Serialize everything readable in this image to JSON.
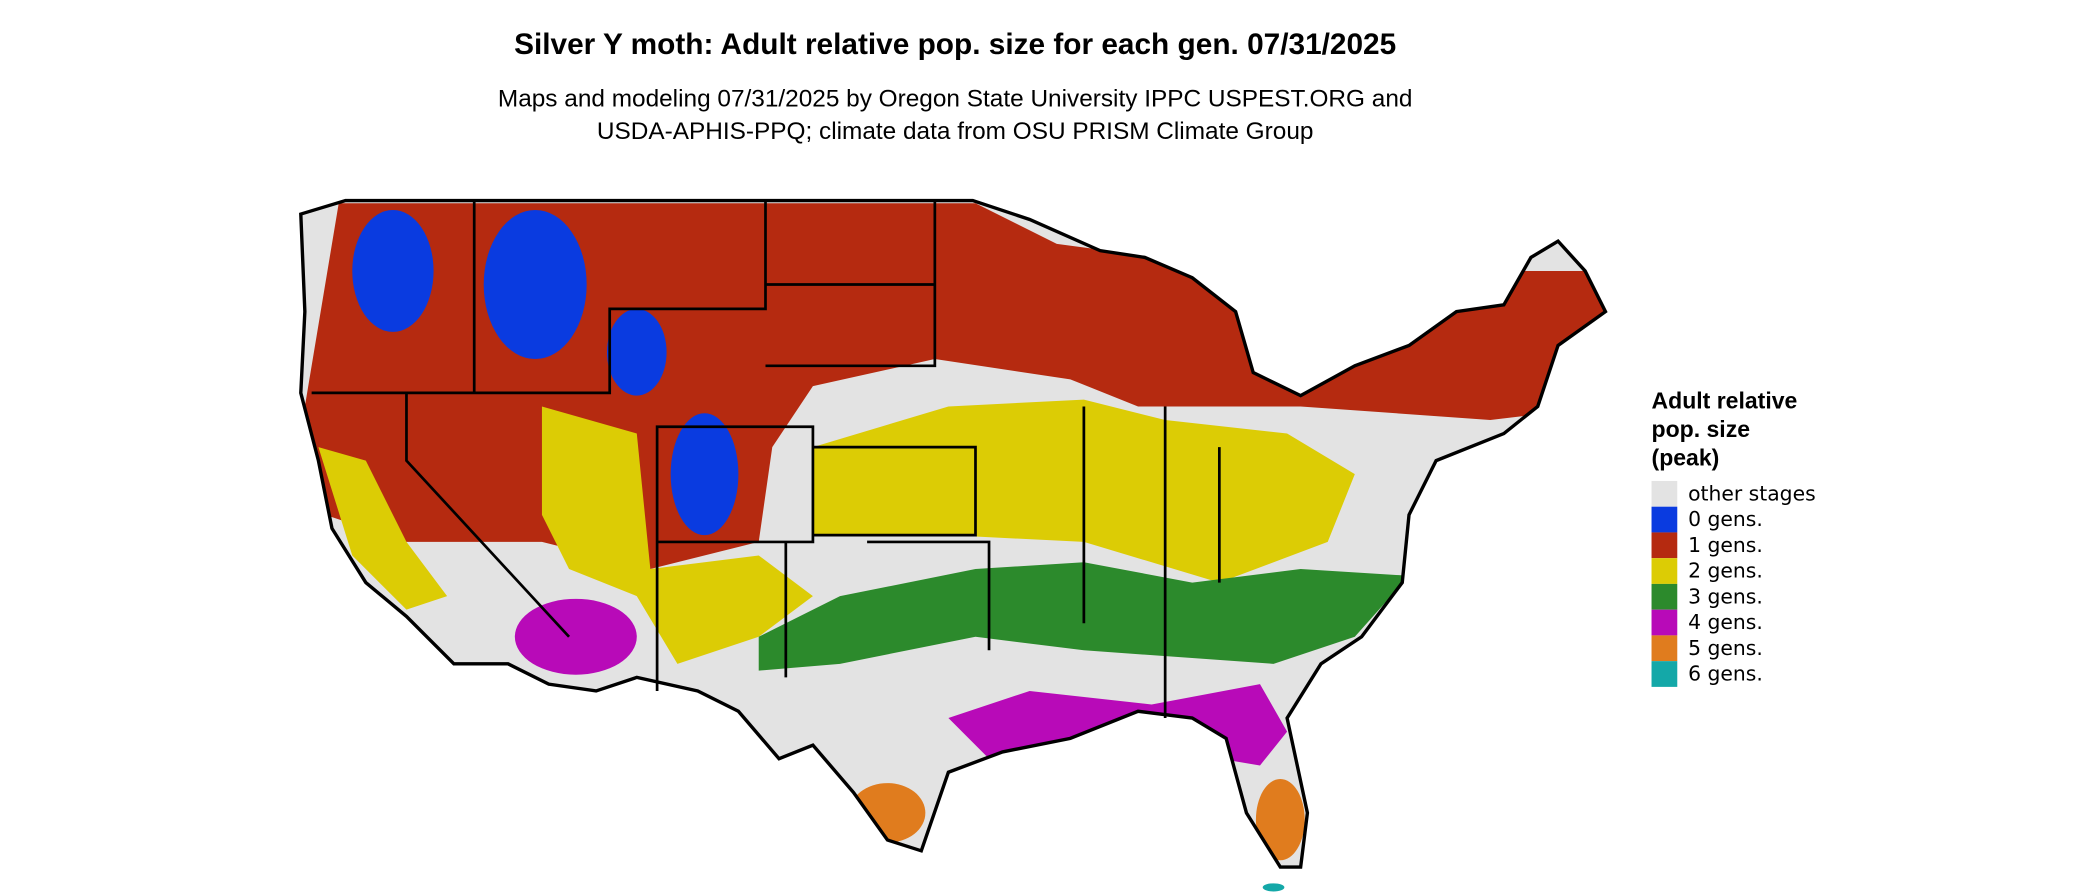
{
  "header": {
    "title": "Silver Y moth: Adult relative pop. size for each gen. 07/31/2025",
    "subtitle": [
      "Maps and modeling 07/31/2025 by Oregon State University IPPC USPEST.ORG and",
      "USDA-APHIS-PPQ; climate data from OSU PRISM Climate Group"
    ]
  },
  "legend": {
    "title": [
      "Adult relative",
      "pop. size",
      "(peak)"
    ],
    "items": [
      {
        "label": "other stages",
        "color": "#e3e3e3"
      },
      {
        "label": "0 gens.",
        "color": "#0a3be0"
      },
      {
        "label": "1 gens.",
        "color": "#b52a10"
      },
      {
        "label": "2 gens.",
        "color": "#dccc05"
      },
      {
        "label": "3 gens.",
        "color": "#2c8a2c"
      },
      {
        "label": "4 gens.",
        "color": "#b80ab8"
      },
      {
        "label": "5 gens.",
        "color": "#e07c1e"
      },
      {
        "label": "6 gens.",
        "color": "#14a8a8"
      }
    ]
  }
}
